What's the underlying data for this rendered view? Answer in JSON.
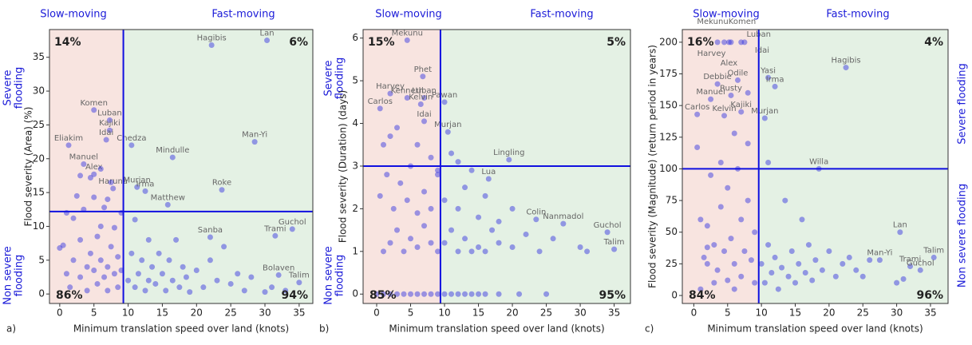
{
  "chart_data": [
    {
      "type": "scatter",
      "panel_label": "a)",
      "xlabel": "Minimum translation speed over land (knots)",
      "ylabel": "Flood severity (Area) (%)",
      "slow_label": "Slow-moving",
      "fast_label": "Fast-moving",
      "severe_label": [
        "Severe",
        "flooding"
      ],
      "non_severe_label": [
        "Non severe",
        "flooding"
      ],
      "quadrant_percentages": [
        "14%",
        "6%",
        "86%",
        "94%"
      ],
      "x_threshold": 9.3,
      "y_threshold": 12.2,
      "xlim": [
        -1.5,
        37
      ],
      "ylim": [
        -1.4,
        39.1
      ],
      "xticks": [
        0,
        5,
        10,
        15,
        20,
        25,
        30,
        35
      ],
      "yticks": [
        0,
        5,
        10,
        15,
        20,
        25,
        30,
        35
      ],
      "color": "#3b3be0",
      "series": [
        {
          "x": [
            30.3,
            22.2,
            5,
            7.3,
            7.3,
            6.8,
            1.3,
            3.5,
            5,
            7.8,
            11.3,
            12.5,
            10.5,
            16.5,
            28.5,
            23.7,
            15.8,
            22,
            34,
            31.5,
            32,
            35
          ],
          "values": [
            37.5,
            36.8,
            27.2,
            25.7,
            24.2,
            22.8,
            22,
            19.2,
            17.7,
            15.6,
            15.8,
            15.2,
            22,
            20.2,
            22.5,
            15.4,
            13.2,
            8.4,
            9.6,
            8.6,
            2.8,
            1.7
          ],
          "point_labels": [
            "Lan",
            "Hagibis",
            "Komen",
            "Luban",
            "Kajiki",
            "Idai",
            "Eliakim",
            "Manuel",
            "Alex",
            "Haruna",
            "Murjan",
            "Irma",
            "Chedza",
            "Mindulle",
            "Man-Yi",
            "Roke",
            "Matthew",
            "Sanba",
            "Guchol",
            "Trami",
            "Bolaven",
            "Talim"
          ]
        },
        {
          "x": [
            0,
            0.5,
            1,
            1.5,
            2,
            2.5,
            2,
            3,
            3,
            3.5,
            4,
            4,
            4.5,
            5,
            5,
            5.5,
            5.5,
            6,
            6,
            6.5,
            6.5,
            7,
            7,
            7.5,
            7.5,
            8,
            8,
            8.5,
            8.5,
            9,
            9,
            1,
            3,
            4.5,
            6,
            7,
            10,
            10.5,
            11,
            11,
            11.5,
            12,
            12.5,
            13,
            13,
            13.5,
            14,
            14.5,
            15,
            15.5,
            16,
            16.5,
            17,
            17.5,
            18,
            18.5,
            19,
            20,
            21,
            22,
            23,
            24,
            25,
            26,
            27,
            28,
            30,
            31,
            33
          ],
          "values": [
            6.8,
            7.2,
            3,
            1,
            11.2,
            14.5,
            5,
            2.5,
            8,
            12.5,
            4,
            0.5,
            6,
            3.5,
            14.3,
            1.5,
            8.5,
            5,
            10,
            2.5,
            12.8,
            4,
            0.5,
            7,
            16.5,
            3,
            9.8,
            5.5,
            1,
            12,
            3.5,
            12,
            17.5,
            17.2,
            18.5,
            14,
            2,
            6,
            11,
            1,
            3,
            5,
            0.5,
            2,
            8,
            4,
            1.5,
            6,
            3,
            0.5,
            5,
            2,
            8,
            1,
            4,
            2.5,
            0.3,
            3.5,
            1,
            5,
            2,
            7,
            1.5,
            3,
            0.5,
            2.5,
            0.3,
            1,
            0.5
          ]
        }
      ]
    },
    {
      "type": "scatter",
      "panel_label": "b)",
      "xlabel": "Minimum translation speed over land (knots)",
      "ylabel": "Flood severity (Duration) (days)",
      "slow_label": "Slow-moving",
      "fast_label": "Fast-moving",
      "severe_label": [
        "Severe",
        "flooding"
      ],
      "non_severe_label": [
        "Non severe",
        "flooding"
      ],
      "quadrant_percentages": [
        "15%",
        "5%",
        "85%",
        "95%"
      ],
      "x_threshold": 9.4,
      "y_threshold": 3,
      "xlim": [
        -2,
        37.4
      ],
      "ylim": [
        -0.22,
        6.2
      ],
      "xticks": [
        0,
        5,
        10,
        15,
        20,
        25,
        30,
        35
      ],
      "yticks": [
        0,
        1,
        2,
        3,
        4,
        5,
        6
      ],
      "color": "#3b3be0",
      "series": [
        {
          "x": [
            4.5,
            6.8,
            2,
            4.5,
            7,
            6.5,
            10,
            0.5,
            7,
            10.5,
            19.5,
            16.5,
            23.5,
            27.5,
            34,
            35
          ],
          "values": [
            5.95,
            5.1,
            4.7,
            4.6,
            4.6,
            4.45,
            4.5,
            4.35,
            4.05,
            3.8,
            3.15,
            2.7,
            1.75,
            1.65,
            1.45,
            1.05
          ],
          "point_labels": [
            "Mekunu",
            "Phet",
            "Harvey",
            "Kenneth",
            "Luban",
            "Kelvin",
            "Pawan",
            "Carlos",
            "Idai",
            "Murjan",
            "Lingling",
            "Lua",
            "Colin",
            "Nanmadol",
            "Guchol",
            "Talim"
          ]
        },
        {
          "x": [
            0,
            1,
            2,
            3,
            4,
            5,
            6,
            7,
            8,
            9,
            10,
            11,
            12,
            13,
            14,
            15,
            16,
            18,
            21,
            25,
            1,
            2,
            3,
            4,
            5,
            6,
            7,
            8,
            9,
            10,
            11,
            12,
            13,
            14,
            15,
            16,
            17,
            18,
            20,
            22,
            24,
            26,
            30,
            31,
            0.5,
            1.5,
            2.5,
            3.5,
            4.5,
            5,
            6,
            7,
            8,
            9,
            10,
            11,
            12,
            13,
            14,
            15,
            16,
            18,
            20,
            1,
            3,
            6,
            8,
            2,
            9,
            12
          ],
          "values": [
            0,
            0,
            0,
            0,
            0,
            0,
            0,
            0,
            0,
            0,
            0,
            0,
            0,
            0,
            0,
            0,
            0,
            0,
            0,
            0,
            1,
            1.2,
            1.5,
            1,
            1.3,
            1.1,
            1.6,
            1.2,
            1,
            1.2,
            1.5,
            1,
            1.3,
            1,
            1.1,
            1,
            1.5,
            1.2,
            1.1,
            1.4,
            1,
            1.3,
            1.1,
            1,
            2.3,
            2.8,
            2,
            2.6,
            2.2,
            3,
            1.9,
            2.4,
            2,
            2.8,
            2.2,
            3.3,
            2,
            2.5,
            2.9,
            1.8,
            2.3,
            1.7,
            2,
            3.5,
            3.9,
            3.5,
            3.2,
            3.7,
            2.9,
            3.1
          ]
        }
      ]
    },
    {
      "type": "scatter",
      "panel_label": "c)",
      "xlabel": "Minimum translation speed over land (knots)",
      "ylabel": "Flood severity (Magnitude) (return period in years)",
      "slow_label": "Slow-moving",
      "fast_label": "Fast-moving",
      "severe_label": [
        "Severe flooding"
      ],
      "non_severe_label": [
        "Non severe flooding"
      ],
      "quadrant_percentages": [
        "16%",
        "4%",
        "84%",
        "96%"
      ],
      "x_threshold": 9.6,
      "y_threshold": 100,
      "xlim": [
        -1.7,
        37.6
      ],
      "ylim": [
        -6.3,
        210
      ],
      "xticks": [
        0,
        5,
        10,
        15,
        20,
        25,
        30,
        35
      ],
      "yticks": [
        0,
        25,
        50,
        75,
        100,
        125,
        150,
        175,
        200
      ],
      "color": "#3b3be0",
      "series": [
        {
          "x": [
            3.5,
            5.5,
            7,
            4.5,
            5.2,
            7.5,
            22.5,
            11,
            12,
            6.5,
            3.5,
            5.5,
            2.5,
            7,
            0.5,
            4.5,
            10.5,
            18.5,
            30.5,
            27.5,
            35.5,
            32,
            33.5
          ],
          "values": [
            200,
            200,
            200,
            200,
            200,
            200,
            180,
            172,
            165,
            170,
            167,
            158,
            155,
            145,
            143,
            142,
            140,
            100,
            50,
            28,
            30,
            23,
            20
          ],
          "point_labels": [
            "Mekunu",
            "Komen",
            "Luban",
            "Harvey",
            "Alex",
            "Idai",
            "Hagibis",
            "Yasi",
            "Irma",
            "Odile",
            "Debbie",
            "Rusty",
            "Manuel",
            "Kajiki",
            "Carlos",
            "Kelvin",
            "Murjan",
            "Willa",
            "Lan",
            "Man-Yi",
            "Talim",
            "Trami",
            "Guchol"
          ]
        },
        {
          "x": [
            0.5,
            1,
            1.5,
            2,
            2,
            2.5,
            3,
            3,
            3.5,
            4,
            4,
            4.5,
            5,
            5,
            5.5,
            6,
            6,
            6.5,
            7,
            7,
            7.5,
            8,
            8,
            8.5,
            9,
            9,
            8,
            1,
            2,
            6,
            10,
            10.5,
            11,
            11,
            11.5,
            12,
            12.5,
            13,
            13.5,
            14,
            14.5,
            15,
            15.5,
            16,
            16.5,
            17,
            17.5,
            18,
            19,
            20,
            21,
            22,
            23,
            24,
            25,
            26,
            30,
            31
          ],
          "values": [
            117,
            60,
            30,
            55,
            25,
            95,
            10,
            40,
            20,
            105,
            70,
            35,
            12,
            85,
            45,
            25,
            128,
            100,
            60,
            15,
            35,
            120,
            75,
            28,
            50,
            10,
            160,
            5,
            38,
            5,
            25,
            10,
            40,
            105,
            18,
            30,
            5,
            22,
            75,
            15,
            35,
            10,
            25,
            60,
            18,
            40,
            12,
            28,
            20,
            35,
            15,
            25,
            30,
            20,
            15,
            28,
            10,
            13
          ]
        }
      ]
    }
  ]
}
